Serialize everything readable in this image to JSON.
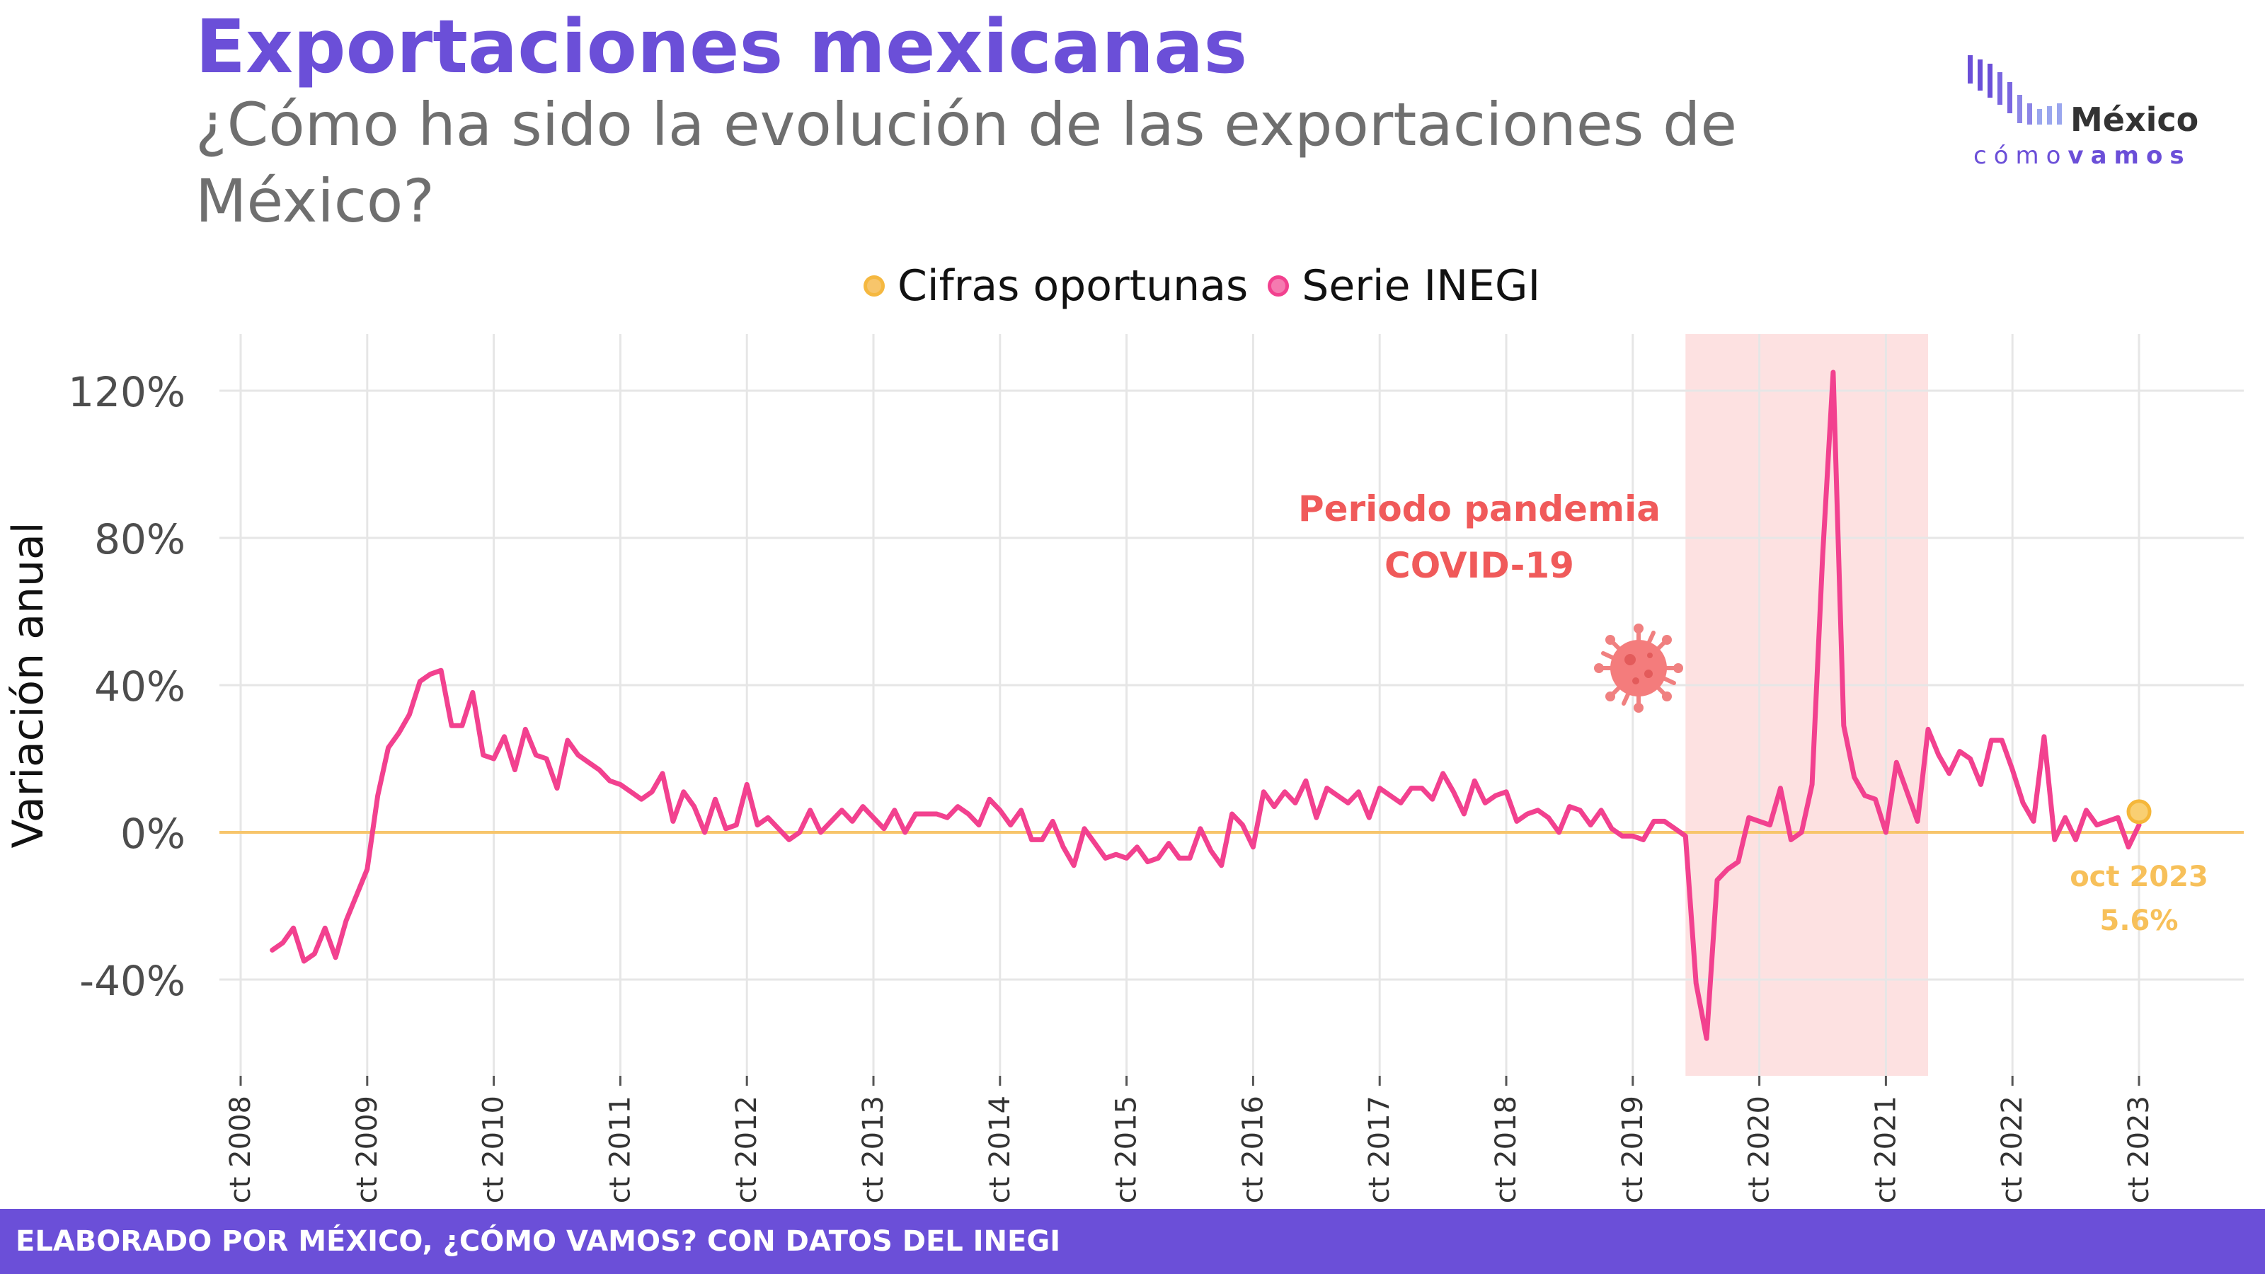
{
  "header": {
    "title": "Exportaciones mexicanas",
    "subtitle": "¿Cómo ha sido la evolución de las exportaciones de México?"
  },
  "logo": {
    "word_mexico": "México",
    "word_como": "cómo",
    "word_vamos": "vamos"
  },
  "legend": [
    {
      "label": "Cifras oportunas",
      "color": "#f7c56b"
    },
    {
      "label": "Serie INEGI",
      "color": "#f2418f"
    }
  ],
  "footer": {
    "credit": "ELABORADO POR MÉXICO, ¿CÓMO VAMOS? CON DATOS DEL INEGI"
  },
  "colors": {
    "brand": "#6b4fd8",
    "series": "#f2418f",
    "oportunas": "#f7c56b",
    "pandemic_band": "#fddcdc",
    "pandemic_text": "#f05a5a"
  },
  "chart_data": {
    "type": "line",
    "ylabel": "Variación anual",
    "ylim": [
      -0.62,
      1.34
    ],
    "y_ticks": [
      {
        "value": 1.2,
        "label": "120%"
      },
      {
        "value": 0.8,
        "label": "80%"
      },
      {
        "value": 0.4,
        "label": "40%"
      },
      {
        "value": 0.0,
        "label": "0%"
      },
      {
        "value": -0.4,
        "label": "-40%"
      }
    ],
    "x_start": "2008-01",
    "x_end": "2023-12",
    "x_ticks": [
      {
        "date": "2008-10",
        "label": "oct 2008"
      },
      {
        "date": "2009-10",
        "label": "oct 2009"
      },
      {
        "date": "2010-10",
        "label": "oct 2010"
      },
      {
        "date": "2011-10",
        "label": "oct 2011"
      },
      {
        "date": "2012-10",
        "label": "oct 2012"
      },
      {
        "date": "2013-10",
        "label": "oct 2013"
      },
      {
        "date": "2014-10",
        "label": "oct 2014"
      },
      {
        "date": "2015-10",
        "label": "oct 2015"
      },
      {
        "date": "2016-10",
        "label": "oct 2016"
      },
      {
        "date": "2017-10",
        "label": "oct 2017"
      },
      {
        "date": "2018-10",
        "label": "oct 2018"
      },
      {
        "date": "2019-10",
        "label": "oct 2019"
      },
      {
        "date": "2020-10",
        "label": "oct 2020"
      },
      {
        "date": "2021-10",
        "label": "oct 2021"
      },
      {
        "date": "2022-10",
        "label": "oct 2022"
      },
      {
        "date": "2023-10",
        "label": "oct 2023"
      }
    ],
    "grid": true,
    "legend_position": "top",
    "series": [
      {
        "name": "Serie INEGI",
        "color": "#f2418f",
        "start": "2009-01",
        "values": [
          -0.32,
          -0.3,
          -0.26,
          -0.35,
          -0.33,
          -0.26,
          -0.34,
          -0.24,
          -0.17,
          -0.1,
          0.1,
          0.23,
          0.27,
          0.32,
          0.41,
          0.43,
          0.44,
          0.29,
          0.29,
          0.38,
          0.21,
          0.2,
          0.26,
          0.17,
          0.28,
          0.21,
          0.2,
          0.12,
          0.25,
          0.21,
          0.19,
          0.17,
          0.14,
          0.13,
          0.11,
          0.09,
          0.11,
          0.16,
          0.03,
          0.11,
          0.07,
          0.0,
          0.09,
          0.01,
          0.02,
          0.13,
          0.02,
          0.04,
          0.01,
          -0.02,
          0.0,
          0.06,
          0.0,
          0.03,
          0.06,
          0.03,
          0.07,
          0.04,
          0.01,
          0.06,
          0.0,
          0.05,
          0.05,
          0.05,
          0.04,
          0.07,
          0.05,
          0.02,
          0.09,
          0.06,
          0.02,
          0.06,
          -0.02,
          -0.02,
          0.03,
          -0.04,
          -0.09,
          0.01,
          -0.03,
          -0.07,
          -0.06,
          -0.07,
          -0.04,
          -0.08,
          -0.07,
          -0.03,
          -0.07,
          -0.07,
          0.01,
          -0.05,
          -0.09,
          0.05,
          0.02,
          -0.04,
          0.11,
          0.07,
          0.11,
          0.08,
          0.14,
          0.04,
          0.12,
          0.1,
          0.08,
          0.11,
          0.04,
          0.12,
          0.1,
          0.08,
          0.12,
          0.12,
          0.09,
          0.16,
          0.11,
          0.05,
          0.14,
          0.08,
          0.1,
          0.11,
          0.03,
          0.05,
          0.06,
          0.04,
          0.0,
          0.07,
          0.06,
          0.02,
          0.06,
          0.01,
          -0.01,
          -0.01,
          -0.02,
          0.03,
          0.03,
          0.01,
          -0.01,
          -0.41,
          -0.56,
          -0.13,
          -0.1,
          -0.08,
          0.04,
          0.03,
          0.02,
          0.12,
          -0.02,
          0.0,
          0.13,
          0.75,
          1.25,
          0.29,
          0.15,
          0.1,
          0.09,
          0.0,
          0.19,
          0.11,
          0.03,
          0.28,
          0.21,
          0.16,
          0.22,
          0.2,
          0.13,
          0.25,
          0.25,
          0.17,
          0.08,
          0.03,
          0.26,
          -0.02,
          0.04,
          -0.02,
          0.06,
          0.02,
          0.03,
          0.04,
          -0.04,
          0.02
        ]
      },
      {
        "name": "Cifras oportunas",
        "color": "#f7c56b",
        "points": [
          {
            "x": "2023-10",
            "y": 0.056
          }
        ]
      }
    ],
    "shaded_region": {
      "from": "2020-03",
      "to": "2022-02",
      "label_line1": "Periodo pandemia",
      "label_line2": "COVID-19"
    },
    "annotations": [
      {
        "x": "2023-10",
        "line1": "oct 2023",
        "line2": "5.6%"
      }
    ]
  }
}
